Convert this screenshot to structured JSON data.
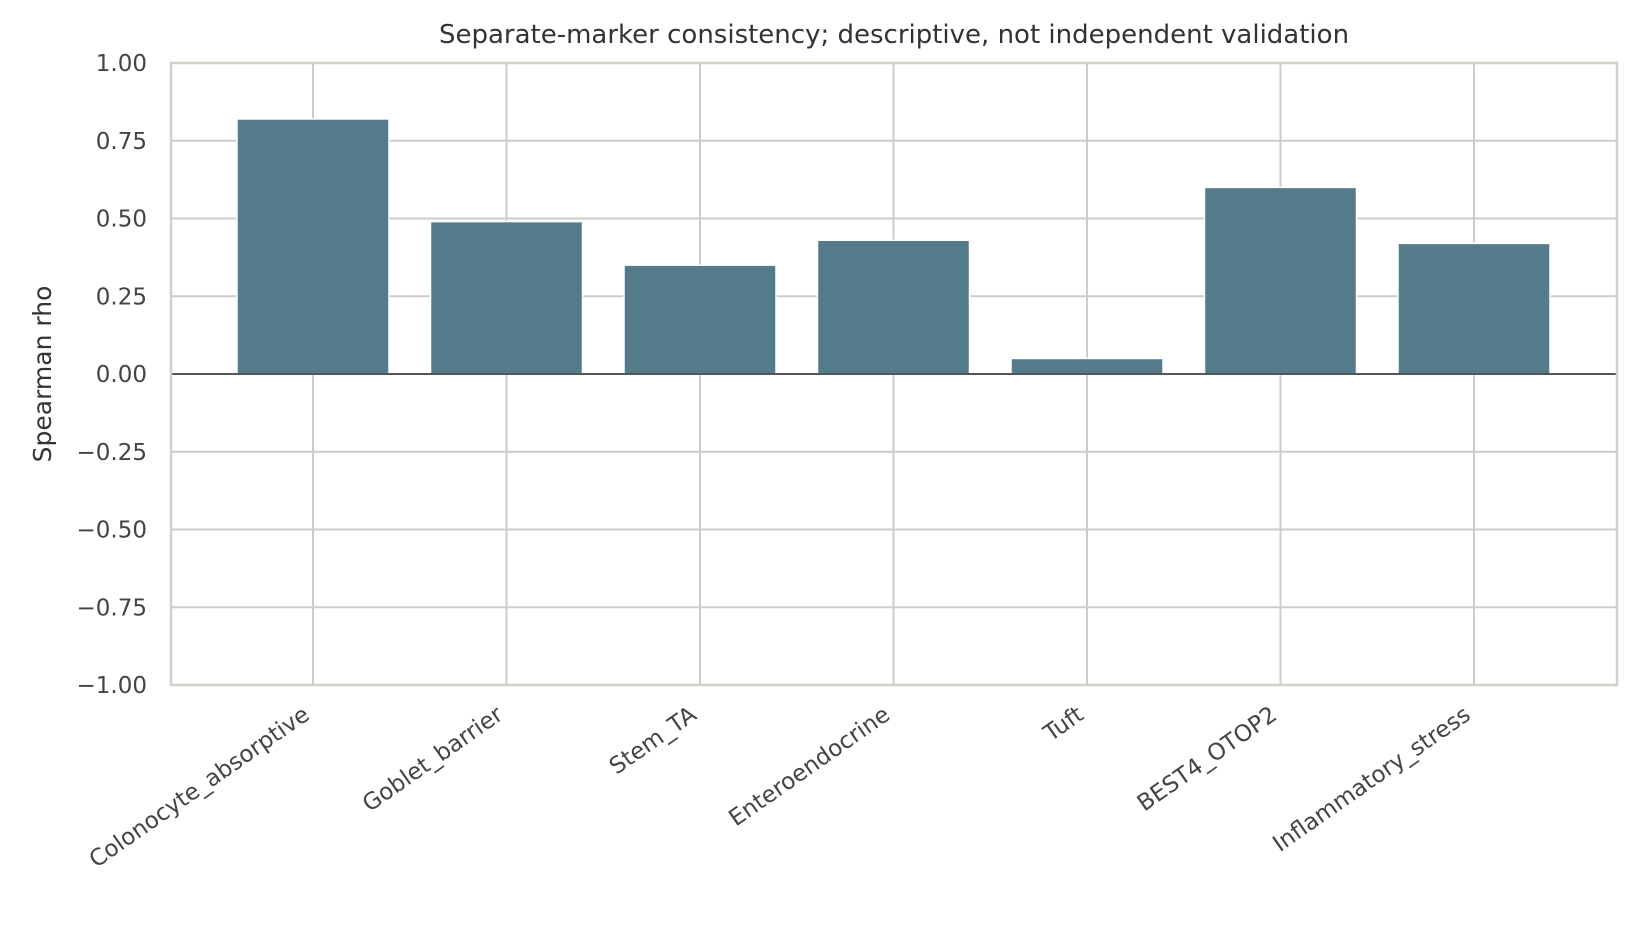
{
  "chart_data": {
    "type": "bar",
    "title": "Separate-marker consistency; descriptive, not independent validation",
    "xlabel": "",
    "ylabel": "Spearman rho",
    "categories": [
      "Colonocyte_absorptive",
      "Goblet_barrier",
      "Stem_TA",
      "Enteroendocrine",
      "Tuft",
      "BEST4_OTOP2",
      "Inflammatory_stress"
    ],
    "values": [
      0.82,
      0.49,
      0.35,
      0.43,
      0.05,
      0.6,
      0.42
    ],
    "ylim": [
      -1.0,
      1.0
    ],
    "yticks": [
      1.0,
      0.75,
      0.5,
      0.25,
      0.0,
      -0.25,
      -0.5,
      -0.75,
      -1.0
    ],
    "ytick_labels": [
      "1.00",
      "0.75",
      "0.50",
      "0.25",
      "0.00",
      "−0.25",
      "−0.50",
      "−0.75",
      "−1.00"
    ],
    "grid": true,
    "zero_line": true,
    "bar_color": "#537b8a",
    "legend": "none"
  }
}
